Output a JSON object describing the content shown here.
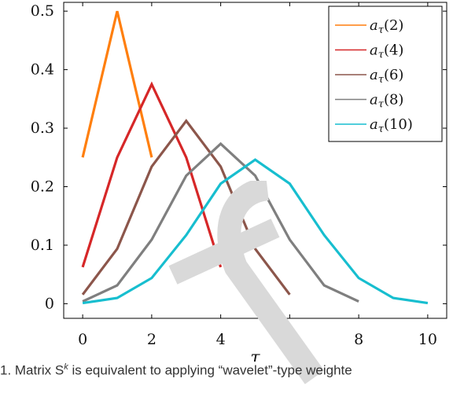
{
  "chart_data": {
    "type": "line",
    "xlabel": "τ",
    "ylabel": "",
    "xlim": [
      -0.55,
      10.55
    ],
    "ylim": [
      -0.025,
      0.515
    ],
    "xticks": [
      0,
      2,
      4,
      6,
      8,
      10
    ],
    "yticks": [
      0,
      0.1,
      0.2,
      0.3,
      0.4,
      0.5
    ],
    "ytick_labels": [
      "0",
      "0.1",
      "0.2",
      "0.3",
      "0.4",
      "0.5"
    ],
    "grid": false,
    "legend_position": "top-right",
    "series": [
      {
        "name": "aτ(2)",
        "color": "#ff7f0e",
        "x": [
          0,
          1,
          2
        ],
        "y": [
          0.25,
          0.5,
          0.25
        ]
      },
      {
        "name": "aτ(4)",
        "color": "#d62728",
        "x": [
          0,
          1,
          2,
          3,
          4
        ],
        "y": [
          0.0625,
          0.25,
          0.375,
          0.25,
          0.0625
        ]
      },
      {
        "name": "aτ(6)",
        "color": "#8c564b",
        "x": [
          0,
          1,
          2,
          3,
          4,
          5,
          6
        ],
        "y": [
          0.0156,
          0.0938,
          0.2344,
          0.3125,
          0.2344,
          0.0938,
          0.0156
        ]
      },
      {
        "name": "aτ(8)",
        "color": "#7f7f7f",
        "x": [
          0,
          1,
          2,
          3,
          4,
          5,
          6,
          7,
          8
        ],
        "y": [
          0.0039,
          0.0313,
          0.1094,
          0.2188,
          0.2734,
          0.2188,
          0.1094,
          0.0313,
          0.0039
        ]
      },
      {
        "name": "aτ(10)",
        "color": "#17becf",
        "x": [
          0,
          1,
          2,
          3,
          4,
          5,
          6,
          7,
          8,
          9,
          10
        ],
        "y": [
          0.001,
          0.0098,
          0.0439,
          0.1172,
          0.2051,
          0.2461,
          0.2051,
          0.1172,
          0.0439,
          0.0098,
          0.001
        ]
      }
    ]
  },
  "legend_labels": [
    {
      "base": "a",
      "sub": "τ",
      "arg": "(2)"
    },
    {
      "base": "a",
      "sub": "τ",
      "arg": "(4)"
    },
    {
      "base": "a",
      "sub": "τ",
      "arg": "(6)"
    },
    {
      "base": "a",
      "sub": "τ",
      "arg": "(8)"
    },
    {
      "base": "a",
      "sub": "τ",
      "arg": "(10)"
    }
  ],
  "caption": {
    "text": "1. Matrix S",
    "sup": "k",
    "text2": " is equivalent to applying “wavelet”-type weighte"
  },
  "watermark_color": "#d9d9d9"
}
